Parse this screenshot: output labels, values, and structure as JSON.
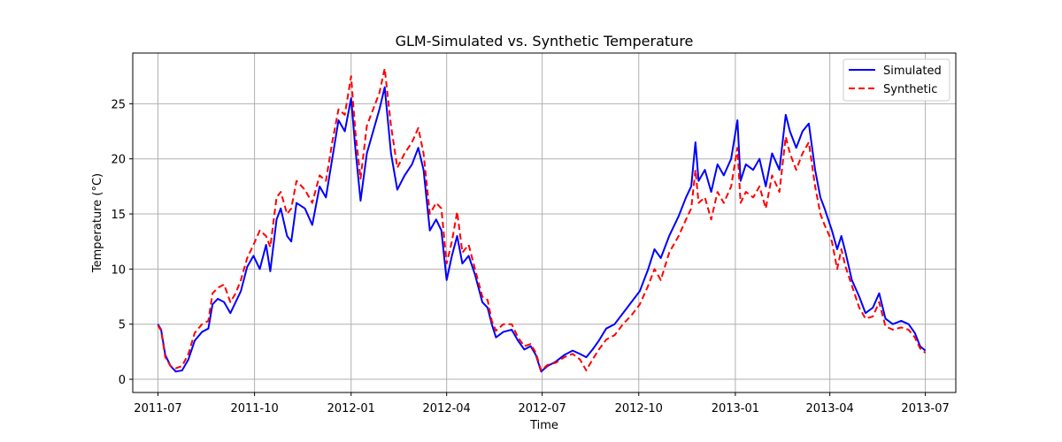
{
  "chart_data": {
    "type": "line",
    "title": "GLM-Simulated vs. Synthetic Temperature",
    "xlabel": "Time",
    "ylabel": "Temperature (°C)",
    "x_range": [
      "2011-06-07",
      "2013-07-30"
    ],
    "ylim": [
      -1.2,
      29.6
    ],
    "x_ticks": [
      "2011-07",
      "2011-10",
      "2012-01",
      "2012-04",
      "2012-07",
      "2012-10",
      "2013-01",
      "2013-04",
      "2013-07"
    ],
    "x_tick_dates": [
      "2011-07-01",
      "2011-10-01",
      "2012-01-01",
      "2012-04-01",
      "2012-07-01",
      "2012-10-01",
      "2013-01-01",
      "2013-04-01",
      "2013-07-01"
    ],
    "y_ticks": [
      0,
      5,
      10,
      15,
      20,
      25
    ],
    "grid": true,
    "legend_position": "top-right",
    "series": [
      {
        "name": "Simulated",
        "color": "#0000ff",
        "style": "solid",
        "points": [
          [
            "2011-07-01",
            5.0
          ],
          [
            "2011-07-04",
            4.5
          ],
          [
            "2011-07-08",
            2.2
          ],
          [
            "2011-07-13",
            1.2
          ],
          [
            "2011-07-18",
            0.7
          ],
          [
            "2011-07-24",
            0.8
          ],
          [
            "2011-07-30",
            1.8
          ],
          [
            "2011-08-05",
            3.5
          ],
          [
            "2011-08-12",
            4.3
          ],
          [
            "2011-08-18",
            4.6
          ],
          [
            "2011-08-22",
            6.8
          ],
          [
            "2011-08-27",
            7.3
          ],
          [
            "2011-09-02",
            7.0
          ],
          [
            "2011-09-08",
            6.0
          ],
          [
            "2011-09-13",
            7.0
          ],
          [
            "2011-09-18",
            8.0
          ],
          [
            "2011-09-24",
            10.2
          ],
          [
            "2011-09-30",
            11.2
          ],
          [
            "2011-10-06",
            10.0
          ],
          [
            "2011-10-12",
            12.2
          ],
          [
            "2011-10-16",
            9.8
          ],
          [
            "2011-10-22",
            14.5
          ],
          [
            "2011-10-26",
            15.5
          ],
          [
            "2011-11-01",
            13.0
          ],
          [
            "2011-11-05",
            12.5
          ],
          [
            "2011-11-10",
            16.0
          ],
          [
            "2011-11-18",
            15.5
          ],
          [
            "2011-11-25",
            14.0
          ],
          [
            "2011-12-02",
            17.5
          ],
          [
            "2011-12-08",
            16.5
          ],
          [
            "2011-12-14",
            20.0
          ],
          [
            "2011-12-20",
            23.5
          ],
          [
            "2011-12-26",
            22.5
          ],
          [
            "2012-01-01",
            25.5
          ],
          [
            "2012-01-05",
            21.0
          ],
          [
            "2012-01-10",
            16.2
          ],
          [
            "2012-01-16",
            20.5
          ],
          [
            "2012-01-22",
            22.5
          ],
          [
            "2012-01-28",
            24.5
          ],
          [
            "2012-02-02",
            26.5
          ],
          [
            "2012-02-08",
            20.5
          ],
          [
            "2012-02-14",
            17.2
          ],
          [
            "2012-02-21",
            18.5
          ],
          [
            "2012-02-28",
            19.5
          ],
          [
            "2012-03-05",
            21.0
          ],
          [
            "2012-03-10",
            19.0
          ],
          [
            "2012-03-16",
            13.5
          ],
          [
            "2012-03-22",
            14.5
          ],
          [
            "2012-03-27",
            13.5
          ],
          [
            "2012-04-01",
            9.0
          ],
          [
            "2012-04-06",
            11.2
          ],
          [
            "2012-04-11",
            13.0
          ],
          [
            "2012-04-16",
            10.5
          ],
          [
            "2012-04-22",
            11.2
          ],
          [
            "2012-04-28",
            9.5
          ],
          [
            "2012-05-05",
            7.0
          ],
          [
            "2012-05-10",
            6.5
          ],
          [
            "2012-05-14",
            5.0
          ],
          [
            "2012-05-18",
            3.8
          ],
          [
            "2012-05-25",
            4.3
          ],
          [
            "2012-06-02",
            4.5
          ],
          [
            "2012-06-08",
            3.5
          ],
          [
            "2012-06-14",
            2.7
          ],
          [
            "2012-06-20",
            3.0
          ],
          [
            "2012-06-25",
            2.2
          ],
          [
            "2012-06-30",
            0.7
          ],
          [
            "2012-07-06",
            1.2
          ],
          [
            "2012-07-14",
            1.6
          ],
          [
            "2012-07-22",
            2.2
          ],
          [
            "2012-07-30",
            2.6
          ],
          [
            "2012-08-06",
            2.3
          ],
          [
            "2012-08-12",
            2.0
          ],
          [
            "2012-08-18",
            2.7
          ],
          [
            "2012-08-24",
            3.5
          ],
          [
            "2012-08-31",
            4.6
          ],
          [
            "2012-09-08",
            5.0
          ],
          [
            "2012-09-16",
            6.0
          ],
          [
            "2012-09-24",
            7.0
          ],
          [
            "2012-10-02",
            8.0
          ],
          [
            "2012-10-10",
            10.0
          ],
          [
            "2012-10-16",
            11.8
          ],
          [
            "2012-10-22",
            11.0
          ],
          [
            "2012-10-30",
            13.0
          ],
          [
            "2012-11-08",
            14.8
          ],
          [
            "2012-11-15",
            16.5
          ],
          [
            "2012-11-20",
            17.5
          ],
          [
            "2012-11-24",
            21.5
          ],
          [
            "2012-11-27",
            18.0
          ],
          [
            "2012-12-03",
            19.0
          ],
          [
            "2012-12-09",
            17.0
          ],
          [
            "2012-12-15",
            19.5
          ],
          [
            "2012-12-21",
            18.5
          ],
          [
            "2012-12-28",
            20.0
          ],
          [
            "2013-01-03",
            23.5
          ],
          [
            "2013-01-06",
            18.0
          ],
          [
            "2013-01-11",
            19.5
          ],
          [
            "2013-01-18",
            19.0
          ],
          [
            "2013-01-24",
            20.0
          ],
          [
            "2013-01-30",
            17.5
          ],
          [
            "2013-02-05",
            20.5
          ],
          [
            "2013-02-12",
            19.0
          ],
          [
            "2013-02-18",
            24.0
          ],
          [
            "2013-02-22",
            22.5
          ],
          [
            "2013-02-28",
            21.0
          ],
          [
            "2013-03-06",
            22.5
          ],
          [
            "2013-03-12",
            23.2
          ],
          [
            "2013-03-18",
            19.0
          ],
          [
            "2013-03-23",
            16.5
          ],
          [
            "2013-03-27",
            15.5
          ],
          [
            "2013-04-03",
            13.5
          ],
          [
            "2013-04-08",
            11.8
          ],
          [
            "2013-04-12",
            13.0
          ],
          [
            "2013-04-16",
            11.5
          ],
          [
            "2013-04-22",
            9.0
          ],
          [
            "2013-04-29",
            7.5
          ],
          [
            "2013-05-05",
            6.0
          ],
          [
            "2013-05-12",
            6.5
          ],
          [
            "2013-05-18",
            7.8
          ],
          [
            "2013-05-24",
            5.5
          ],
          [
            "2013-05-31",
            5.0
          ],
          [
            "2013-06-08",
            5.3
          ],
          [
            "2013-06-15",
            5.0
          ],
          [
            "2013-06-21",
            4.2
          ],
          [
            "2013-06-26",
            3.0
          ],
          [
            "2013-07-01",
            2.6
          ]
        ]
      },
      {
        "name": "Synthetic",
        "color": "#ff0000",
        "style": "dashed",
        "points": [
          [
            "2011-07-01",
            4.9
          ],
          [
            "2011-07-04",
            4.4
          ],
          [
            "2011-07-08",
            2.0
          ],
          [
            "2011-07-13",
            1.2
          ],
          [
            "2011-07-18",
            1.0
          ],
          [
            "2011-07-24",
            1.2
          ],
          [
            "2011-07-30",
            2.3
          ],
          [
            "2011-08-05",
            4.2
          ],
          [
            "2011-08-12",
            5.0
          ],
          [
            "2011-08-18",
            5.3
          ],
          [
            "2011-08-22",
            7.8
          ],
          [
            "2011-08-27",
            8.3
          ],
          [
            "2011-09-02",
            8.6
          ],
          [
            "2011-09-08",
            7.0
          ],
          [
            "2011-09-13",
            7.8
          ],
          [
            "2011-09-18",
            9.0
          ],
          [
            "2011-09-24",
            11.0
          ],
          [
            "2011-09-30",
            12.2
          ],
          [
            "2011-10-06",
            13.5
          ],
          [
            "2011-10-12",
            13.0
          ],
          [
            "2011-10-16",
            12.0
          ],
          [
            "2011-10-22",
            16.5
          ],
          [
            "2011-10-26",
            17.0
          ],
          [
            "2011-11-01",
            15.0
          ],
          [
            "2011-11-05",
            15.5
          ],
          [
            "2011-11-10",
            18.0
          ],
          [
            "2011-11-18",
            17.2
          ],
          [
            "2011-11-25",
            16.0
          ],
          [
            "2011-12-02",
            18.5
          ],
          [
            "2011-12-08",
            18.0
          ],
          [
            "2011-12-14",
            21.5
          ],
          [
            "2011-12-20",
            24.5
          ],
          [
            "2011-12-26",
            24.0
          ],
          [
            "2012-01-01",
            27.5
          ],
          [
            "2012-01-05",
            22.5
          ],
          [
            "2012-01-10",
            18.2
          ],
          [
            "2012-01-16",
            23.0
          ],
          [
            "2012-01-22",
            24.5
          ],
          [
            "2012-01-28",
            26.0
          ],
          [
            "2012-02-02",
            28.2
          ],
          [
            "2012-02-08",
            23.0
          ],
          [
            "2012-02-14",
            19.2
          ],
          [
            "2012-02-21",
            20.5
          ],
          [
            "2012-02-28",
            21.5
          ],
          [
            "2012-03-05",
            22.8
          ],
          [
            "2012-03-10",
            20.5
          ],
          [
            "2012-03-16",
            15.0
          ],
          [
            "2012-03-22",
            16.0
          ],
          [
            "2012-03-27",
            15.5
          ],
          [
            "2012-04-01",
            10.5
          ],
          [
            "2012-04-06",
            12.5
          ],
          [
            "2012-04-11",
            15.2
          ],
          [
            "2012-04-16",
            11.5
          ],
          [
            "2012-04-22",
            12.2
          ],
          [
            "2012-04-28",
            10.0
          ],
          [
            "2012-05-05",
            7.5
          ],
          [
            "2012-05-10",
            7.2
          ],
          [
            "2012-05-14",
            5.3
          ],
          [
            "2012-05-18",
            4.4
          ],
          [
            "2012-05-25",
            5.0
          ],
          [
            "2012-06-02",
            5.0
          ],
          [
            "2012-06-08",
            3.8
          ],
          [
            "2012-06-14",
            3.0
          ],
          [
            "2012-06-20",
            3.2
          ],
          [
            "2012-06-25",
            2.4
          ],
          [
            "2012-06-30",
            0.8
          ],
          [
            "2012-07-06",
            1.3
          ],
          [
            "2012-07-14",
            1.5
          ],
          [
            "2012-07-22",
            2.0
          ],
          [
            "2012-07-30",
            2.3
          ],
          [
            "2012-08-06",
            1.8
          ],
          [
            "2012-08-12",
            0.8
          ],
          [
            "2012-08-18",
            1.8
          ],
          [
            "2012-08-24",
            2.7
          ],
          [
            "2012-08-31",
            3.6
          ],
          [
            "2012-09-08",
            4.0
          ],
          [
            "2012-09-16",
            5.0
          ],
          [
            "2012-09-24",
            5.8
          ],
          [
            "2012-10-02",
            6.8
          ],
          [
            "2012-10-10",
            8.5
          ],
          [
            "2012-10-16",
            10.0
          ],
          [
            "2012-10-22",
            9.0
          ],
          [
            "2012-10-30",
            11.5
          ],
          [
            "2012-11-08",
            13.0
          ],
          [
            "2012-11-15",
            14.5
          ],
          [
            "2012-11-20",
            15.5
          ],
          [
            "2012-11-24",
            19.0
          ],
          [
            "2012-11-27",
            16.0
          ],
          [
            "2012-12-03",
            16.5
          ],
          [
            "2012-12-09",
            14.5
          ],
          [
            "2012-12-15",
            17.0
          ],
          [
            "2012-12-21",
            16.0
          ],
          [
            "2012-12-28",
            17.5
          ],
          [
            "2013-01-03",
            21.0
          ],
          [
            "2013-01-06",
            16.0
          ],
          [
            "2013-01-11",
            17.0
          ],
          [
            "2013-01-18",
            16.5
          ],
          [
            "2013-01-24",
            17.5
          ],
          [
            "2013-01-30",
            15.5
          ],
          [
            "2013-02-05",
            18.5
          ],
          [
            "2013-02-12",
            17.0
          ],
          [
            "2013-02-18",
            22.0
          ],
          [
            "2013-02-22",
            20.5
          ],
          [
            "2013-02-28",
            19.0
          ],
          [
            "2013-03-06",
            20.5
          ],
          [
            "2013-03-12",
            21.5
          ],
          [
            "2013-03-18",
            17.5
          ],
          [
            "2013-03-23",
            15.0
          ],
          [
            "2013-03-27",
            14.0
          ],
          [
            "2013-04-03",
            12.5
          ],
          [
            "2013-04-08",
            10.0
          ],
          [
            "2013-04-12",
            11.8
          ],
          [
            "2013-04-16",
            10.2
          ],
          [
            "2013-04-22",
            8.5
          ],
          [
            "2013-04-29",
            6.5
          ],
          [
            "2013-05-05",
            5.5
          ],
          [
            "2013-05-12",
            5.7
          ],
          [
            "2013-05-18",
            7.0
          ],
          [
            "2013-05-24",
            4.8
          ],
          [
            "2013-05-31",
            4.5
          ],
          [
            "2013-06-08",
            4.7
          ],
          [
            "2013-06-15",
            4.5
          ],
          [
            "2013-06-21",
            3.8
          ],
          [
            "2013-06-26",
            2.8
          ],
          [
            "2013-07-01",
            2.4
          ]
        ]
      }
    ]
  }
}
